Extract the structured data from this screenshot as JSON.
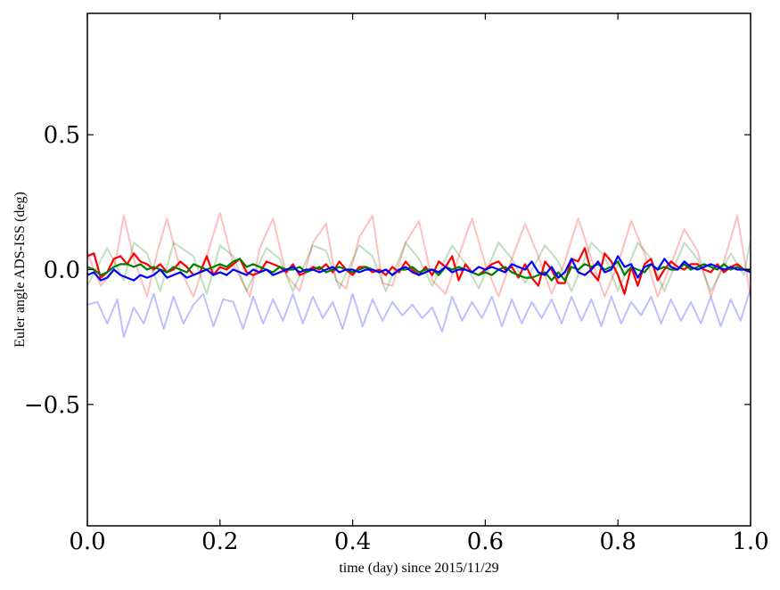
{
  "chart_data": {
    "type": "line",
    "title": "",
    "xlabel": "time (day) since 2015/11/29",
    "ylabel": "Euler angle ADS-ISS (deg)",
    "xlim": [
      0.0,
      1.0
    ],
    "ylim": [
      -0.95,
      0.95
    ],
    "grid": false,
    "legend": "none",
    "x_ticks": [
      {
        "value": 0.0,
        "label": "0.0"
      },
      {
        "value": 0.2,
        "label": "0.2"
      },
      {
        "value": 0.4,
        "label": "0.4"
      },
      {
        "value": 0.6,
        "label": "0.6"
      },
      {
        "value": 0.8,
        "label": "0.8"
      },
      {
        "value": 1.0,
        "label": "1.0"
      }
    ],
    "y_ticks": [
      {
        "value": 0.5,
        "label": "0.5"
      },
      {
        "value": 0.0,
        "label": "0.0"
      },
      {
        "value": -0.5,
        "label": "−0.5"
      }
    ],
    "series": [
      {
        "color": "#ff0000",
        "opacity": 0.25,
        "x": [
          0.0,
          0.02,
          0.04,
          0.055,
          0.07,
          0.09,
          0.105,
          0.12,
          0.14,
          0.16,
          0.18,
          0.2,
          0.22,
          0.245,
          0.26,
          0.28,
          0.3,
          0.32,
          0.34,
          0.36,
          0.375,
          0.39,
          0.41,
          0.43,
          0.445,
          0.46,
          0.48,
          0.5,
          0.52,
          0.54,
          0.56,
          0.58,
          0.6,
          0.62,
          0.64,
          0.66,
          0.68,
          0.7,
          0.72,
          0.74,
          0.76,
          0.78,
          0.8,
          0.82,
          0.84,
          0.86,
          0.88,
          0.9,
          0.92,
          0.94,
          0.96,
          0.98,
          1.0
        ],
        "y": [
          0.06,
          -0.06,
          0.0,
          0.2,
          0.04,
          -0.1,
          0.06,
          0.19,
          0.0,
          -0.1,
          0.05,
          0.21,
          0.02,
          -0.1,
          0.08,
          0.19,
          -0.02,
          -0.08,
          0.1,
          0.17,
          -0.04,
          -0.07,
          0.12,
          0.2,
          -0.05,
          -0.06,
          0.1,
          0.18,
          -0.04,
          -0.09,
          0.05,
          0.19,
          0.02,
          -0.1,
          0.04,
          0.17,
          0.05,
          -0.09,
          0.03,
          0.19,
          0.04,
          -0.1,
          0.02,
          0.18,
          0.06,
          -0.1,
          0.02,
          0.15,
          0.07,
          -0.1,
          0.03,
          0.2,
          -0.1
        ]
      },
      {
        "color": "#008000",
        "opacity": 0.25,
        "x": [
          0.0,
          0.03,
          0.055,
          0.07,
          0.09,
          0.11,
          0.13,
          0.16,
          0.18,
          0.2,
          0.22,
          0.24,
          0.27,
          0.29,
          0.31,
          0.34,
          0.36,
          0.38,
          0.41,
          0.43,
          0.45,
          0.48,
          0.5,
          0.52,
          0.55,
          0.57,
          0.59,
          0.62,
          0.64,
          0.66,
          0.69,
          0.71,
          0.73,
          0.76,
          0.78,
          0.8,
          0.83,
          0.85,
          0.87,
          0.9,
          0.92,
          0.94,
          0.97,
          0.99,
          1.0
        ],
        "y": [
          -0.06,
          0.08,
          -0.04,
          0.1,
          0.06,
          -0.08,
          0.1,
          0.05,
          -0.09,
          0.09,
          0.05,
          -0.08,
          0.08,
          0.04,
          -0.08,
          0.09,
          0.07,
          -0.07,
          0.09,
          0.05,
          -0.08,
          0.1,
          0.04,
          -0.06,
          0.09,
          0.02,
          -0.07,
          0.1,
          0.04,
          -0.05,
          0.09,
          0.03,
          -0.08,
          0.1,
          0.05,
          -0.08,
          0.1,
          0.04,
          -0.08,
          0.1,
          0.04,
          -0.08,
          0.06,
          -0.02,
          0.11
        ]
      },
      {
        "color": "#0000ff",
        "opacity": 0.25,
        "x": [
          0.0,
          0.015,
          0.03,
          0.045,
          0.055,
          0.07,
          0.085,
          0.1,
          0.115,
          0.13,
          0.145,
          0.16,
          0.175,
          0.19,
          0.205,
          0.22,
          0.235,
          0.25,
          0.265,
          0.28,
          0.295,
          0.31,
          0.325,
          0.34,
          0.355,
          0.37,
          0.385,
          0.4,
          0.415,
          0.43,
          0.445,
          0.46,
          0.475,
          0.49,
          0.505,
          0.52,
          0.535,
          0.55,
          0.565,
          0.58,
          0.595,
          0.61,
          0.625,
          0.64,
          0.655,
          0.67,
          0.685,
          0.7,
          0.715,
          0.73,
          0.745,
          0.76,
          0.775,
          0.79,
          0.805,
          0.82,
          0.835,
          0.85,
          0.865,
          0.88,
          0.895,
          0.91,
          0.925,
          0.94,
          0.955,
          0.97,
          0.985,
          1.0
        ],
        "y": [
          -0.13,
          -0.12,
          -0.2,
          -0.11,
          -0.25,
          -0.14,
          -0.2,
          -0.09,
          -0.22,
          -0.1,
          -0.2,
          -0.13,
          -0.09,
          -0.21,
          -0.11,
          -0.12,
          -0.22,
          -0.1,
          -0.2,
          -0.11,
          -0.19,
          -0.09,
          -0.2,
          -0.1,
          -0.18,
          -0.12,
          -0.22,
          -0.09,
          -0.21,
          -0.11,
          -0.19,
          -0.12,
          -0.17,
          -0.13,
          -0.18,
          -0.14,
          -0.23,
          -0.1,
          -0.19,
          -0.12,
          -0.18,
          -0.1,
          -0.21,
          -0.11,
          -0.2,
          -0.12,
          -0.18,
          -0.11,
          -0.2,
          -0.1,
          -0.19,
          -0.11,
          -0.21,
          -0.1,
          -0.2,
          -0.12,
          -0.17,
          -0.1,
          -0.2,
          -0.11,
          -0.19,
          -0.12,
          -0.2,
          -0.1,
          -0.21,
          -0.11,
          -0.19,
          -0.07
        ]
      },
      {
        "color": "#ff0000",
        "opacity": 1.0,
        "x": [
          0.0,
          0.01,
          0.02,
          0.03,
          0.04,
          0.05,
          0.06,
          0.07,
          0.08,
          0.09,
          0.1,
          0.11,
          0.12,
          0.13,
          0.14,
          0.15,
          0.16,
          0.17,
          0.18,
          0.19,
          0.2,
          0.21,
          0.22,
          0.23,
          0.24,
          0.25,
          0.26,
          0.27,
          0.28,
          0.29,
          0.3,
          0.31,
          0.32,
          0.33,
          0.34,
          0.35,
          0.36,
          0.37,
          0.38,
          0.39,
          0.4,
          0.41,
          0.42,
          0.43,
          0.44,
          0.45,
          0.46,
          0.47,
          0.48,
          0.49,
          0.5,
          0.51,
          0.52,
          0.53,
          0.54,
          0.55,
          0.56,
          0.57,
          0.58,
          0.59,
          0.6,
          0.61,
          0.62,
          0.63,
          0.64,
          0.65,
          0.66,
          0.67,
          0.68,
          0.69,
          0.7,
          0.71,
          0.72,
          0.73,
          0.74,
          0.75,
          0.76,
          0.77,
          0.78,
          0.79,
          0.8,
          0.81,
          0.82,
          0.83,
          0.84,
          0.85,
          0.86,
          0.87,
          0.88,
          0.89,
          0.9,
          0.91,
          0.92,
          0.93,
          0.94,
          0.95,
          0.96,
          0.97,
          0.98,
          0.99,
          1.0
        ],
        "y": [
          0.05,
          0.06,
          -0.03,
          -0.01,
          0.04,
          0.05,
          0.02,
          0.06,
          0.03,
          0.02,
          0.0,
          0.02,
          -0.01,
          0.0,
          0.03,
          0.01,
          -0.02,
          -0.01,
          0.05,
          -0.02,
          0.01,
          0.0,
          0.02,
          0.04,
          -0.01,
          -0.02,
          -0.01,
          0.03,
          0.02,
          0.01,
          -0.01,
          0.02,
          -0.02,
          -0.01,
          0.01,
          0.0,
          0.02,
          -0.01,
          0.03,
          0.0,
          -0.02,
          0.01,
          0.01,
          -0.01,
          0.0,
          -0.02,
          0.01,
          -0.01,
          0.03,
          0.0,
          -0.02,
          0.01,
          -0.02,
          0.03,
          0.01,
          0.05,
          -0.04,
          0.02,
          -0.01,
          -0.02,
          0.0,
          0.02,
          0.03,
          0.0,
          0.01,
          -0.03,
          0.02,
          -0.03,
          -0.06,
          0.03,
          0.0,
          -0.05,
          -0.05,
          0.04,
          0.03,
          0.08,
          -0.01,
          -0.04,
          0.06,
          0.03,
          -0.02,
          -0.09,
          0.01,
          -0.06,
          0.02,
          0.04,
          -0.04,
          0.0,
          0.03,
          0.01,
          0.0,
          0.02,
          0.02,
          0.0,
          -0.01,
          0.02,
          -0.01,
          0.01,
          0.02,
          0.0,
          0.0
        ]
      },
      {
        "color": "#008000",
        "opacity": 1.0,
        "x": [
          0.0,
          0.01,
          0.02,
          0.03,
          0.04,
          0.05,
          0.06,
          0.07,
          0.08,
          0.09,
          0.1,
          0.11,
          0.12,
          0.13,
          0.14,
          0.15,
          0.16,
          0.17,
          0.18,
          0.19,
          0.2,
          0.21,
          0.22,
          0.23,
          0.24,
          0.25,
          0.26,
          0.27,
          0.28,
          0.29,
          0.3,
          0.31,
          0.32,
          0.33,
          0.34,
          0.35,
          0.36,
          0.37,
          0.38,
          0.39,
          0.4,
          0.41,
          0.42,
          0.43,
          0.44,
          0.45,
          0.46,
          0.47,
          0.48,
          0.49,
          0.5,
          0.51,
          0.52,
          0.53,
          0.54,
          0.55,
          0.56,
          0.57,
          0.58,
          0.59,
          0.6,
          0.61,
          0.62,
          0.63,
          0.64,
          0.65,
          0.66,
          0.67,
          0.68,
          0.69,
          0.7,
          0.71,
          0.72,
          0.73,
          0.74,
          0.75,
          0.76,
          0.77,
          0.78,
          0.79,
          0.8,
          0.81,
          0.82,
          0.83,
          0.84,
          0.85,
          0.86,
          0.87,
          0.88,
          0.89,
          0.9,
          0.91,
          0.92,
          0.93,
          0.94,
          0.95,
          0.96,
          0.97,
          0.98,
          0.99,
          1.0
        ],
        "y": [
          0.01,
          0.0,
          -0.02,
          -0.01,
          0.01,
          0.02,
          0.02,
          0.01,
          0.02,
          0.0,
          0.01,
          0.0,
          -0.01,
          0.01,
          0.0,
          -0.01,
          0.02,
          0.01,
          0.0,
          0.01,
          0.02,
          0.01,
          0.03,
          0.04,
          0.01,
          0.02,
          0.01,
          0.0,
          -0.01,
          0.01,
          0.0,
          0.0,
          0.01,
          -0.01,
          0.0,
          0.01,
          -0.01,
          0.0,
          0.01,
          0.0,
          -0.01,
          0.0,
          0.01,
          0.0,
          -0.01,
          0.0,
          -0.02,
          0.0,
          0.0,
          0.01,
          -0.01,
          0.0,
          0.0,
          -0.02,
          0.01,
          0.0,
          0.01,
          0.0,
          -0.01,
          -0.02,
          -0.01,
          -0.02,
          0.0,
          0.01,
          -0.01,
          -0.02,
          -0.03,
          -0.03,
          -0.02,
          -0.01,
          -0.04,
          -0.01,
          -0.04,
          0.01,
          0.0,
          0.02,
          0.01,
          0.02,
          0.0,
          0.01,
          0.03,
          -0.02,
          0.01,
          0.0,
          -0.01,
          0.02,
          0.0,
          0.01,
          0.0,
          0.0,
          0.02,
          0.0,
          0.01,
          0.02,
          0.01,
          0.0,
          0.02,
          0.0,
          0.01,
          0.0,
          0.0
        ]
      },
      {
        "color": "#0000ff",
        "opacity": 1.0,
        "x": [
          0.0,
          0.01,
          0.02,
          0.03,
          0.04,
          0.05,
          0.06,
          0.07,
          0.08,
          0.09,
          0.1,
          0.11,
          0.12,
          0.13,
          0.14,
          0.15,
          0.16,
          0.17,
          0.18,
          0.19,
          0.2,
          0.21,
          0.22,
          0.23,
          0.24,
          0.25,
          0.26,
          0.27,
          0.28,
          0.29,
          0.3,
          0.31,
          0.32,
          0.33,
          0.34,
          0.35,
          0.36,
          0.37,
          0.38,
          0.39,
          0.4,
          0.41,
          0.42,
          0.43,
          0.44,
          0.45,
          0.46,
          0.47,
          0.48,
          0.49,
          0.5,
          0.51,
          0.52,
          0.53,
          0.54,
          0.55,
          0.56,
          0.57,
          0.58,
          0.59,
          0.6,
          0.61,
          0.62,
          0.63,
          0.64,
          0.65,
          0.66,
          0.67,
          0.68,
          0.69,
          0.7,
          0.71,
          0.72,
          0.73,
          0.74,
          0.75,
          0.76,
          0.77,
          0.78,
          0.79,
          0.8,
          0.81,
          0.82,
          0.83,
          0.84,
          0.85,
          0.86,
          0.87,
          0.88,
          0.89,
          0.9,
          0.91,
          0.92,
          0.93,
          0.94,
          0.95,
          0.96,
          0.97,
          0.98,
          0.99,
          1.0
        ],
        "y": [
          -0.02,
          -0.01,
          -0.04,
          -0.03,
          0.0,
          -0.02,
          -0.03,
          -0.04,
          -0.02,
          -0.03,
          -0.02,
          0.0,
          -0.03,
          -0.02,
          -0.01,
          -0.03,
          -0.02,
          -0.01,
          0.0,
          -0.02,
          -0.01,
          -0.02,
          0.0,
          -0.01,
          -0.02,
          0.0,
          -0.01,
          0.0,
          -0.02,
          -0.01,
          0.0,
          0.01,
          -0.01,
          0.0,
          0.0,
          -0.01,
          0.0,
          0.01,
          -0.01,
          0.0,
          0.0,
          -0.01,
          0.0,
          0.0,
          -0.01,
          0.0,
          -0.02,
          0.0,
          0.01,
          -0.01,
          -0.02,
          -0.01,
          0.0,
          -0.01,
          0.01,
          -0.01,
          0.0,
          0.0,
          -0.01,
          0.01,
          0.0,
          0.01,
          0.0,
          -0.01,
          0.02,
          0.01,
          0.0,
          0.03,
          -0.01,
          -0.02,
          0.01,
          -0.03,
          -0.01,
          0.04,
          -0.01,
          -0.02,
          0.0,
          0.03,
          -0.01,
          0.0,
          0.05,
          0.01,
          0.02,
          -0.03,
          0.01,
          0.02,
          0.0,
          0.04,
          0.01,
          0.0,
          0.03,
          0.01,
          0.0,
          0.01,
          0.02,
          0.01,
          0.0,
          0.01,
          0.0,
          0.0,
          -0.01
        ]
      }
    ]
  }
}
